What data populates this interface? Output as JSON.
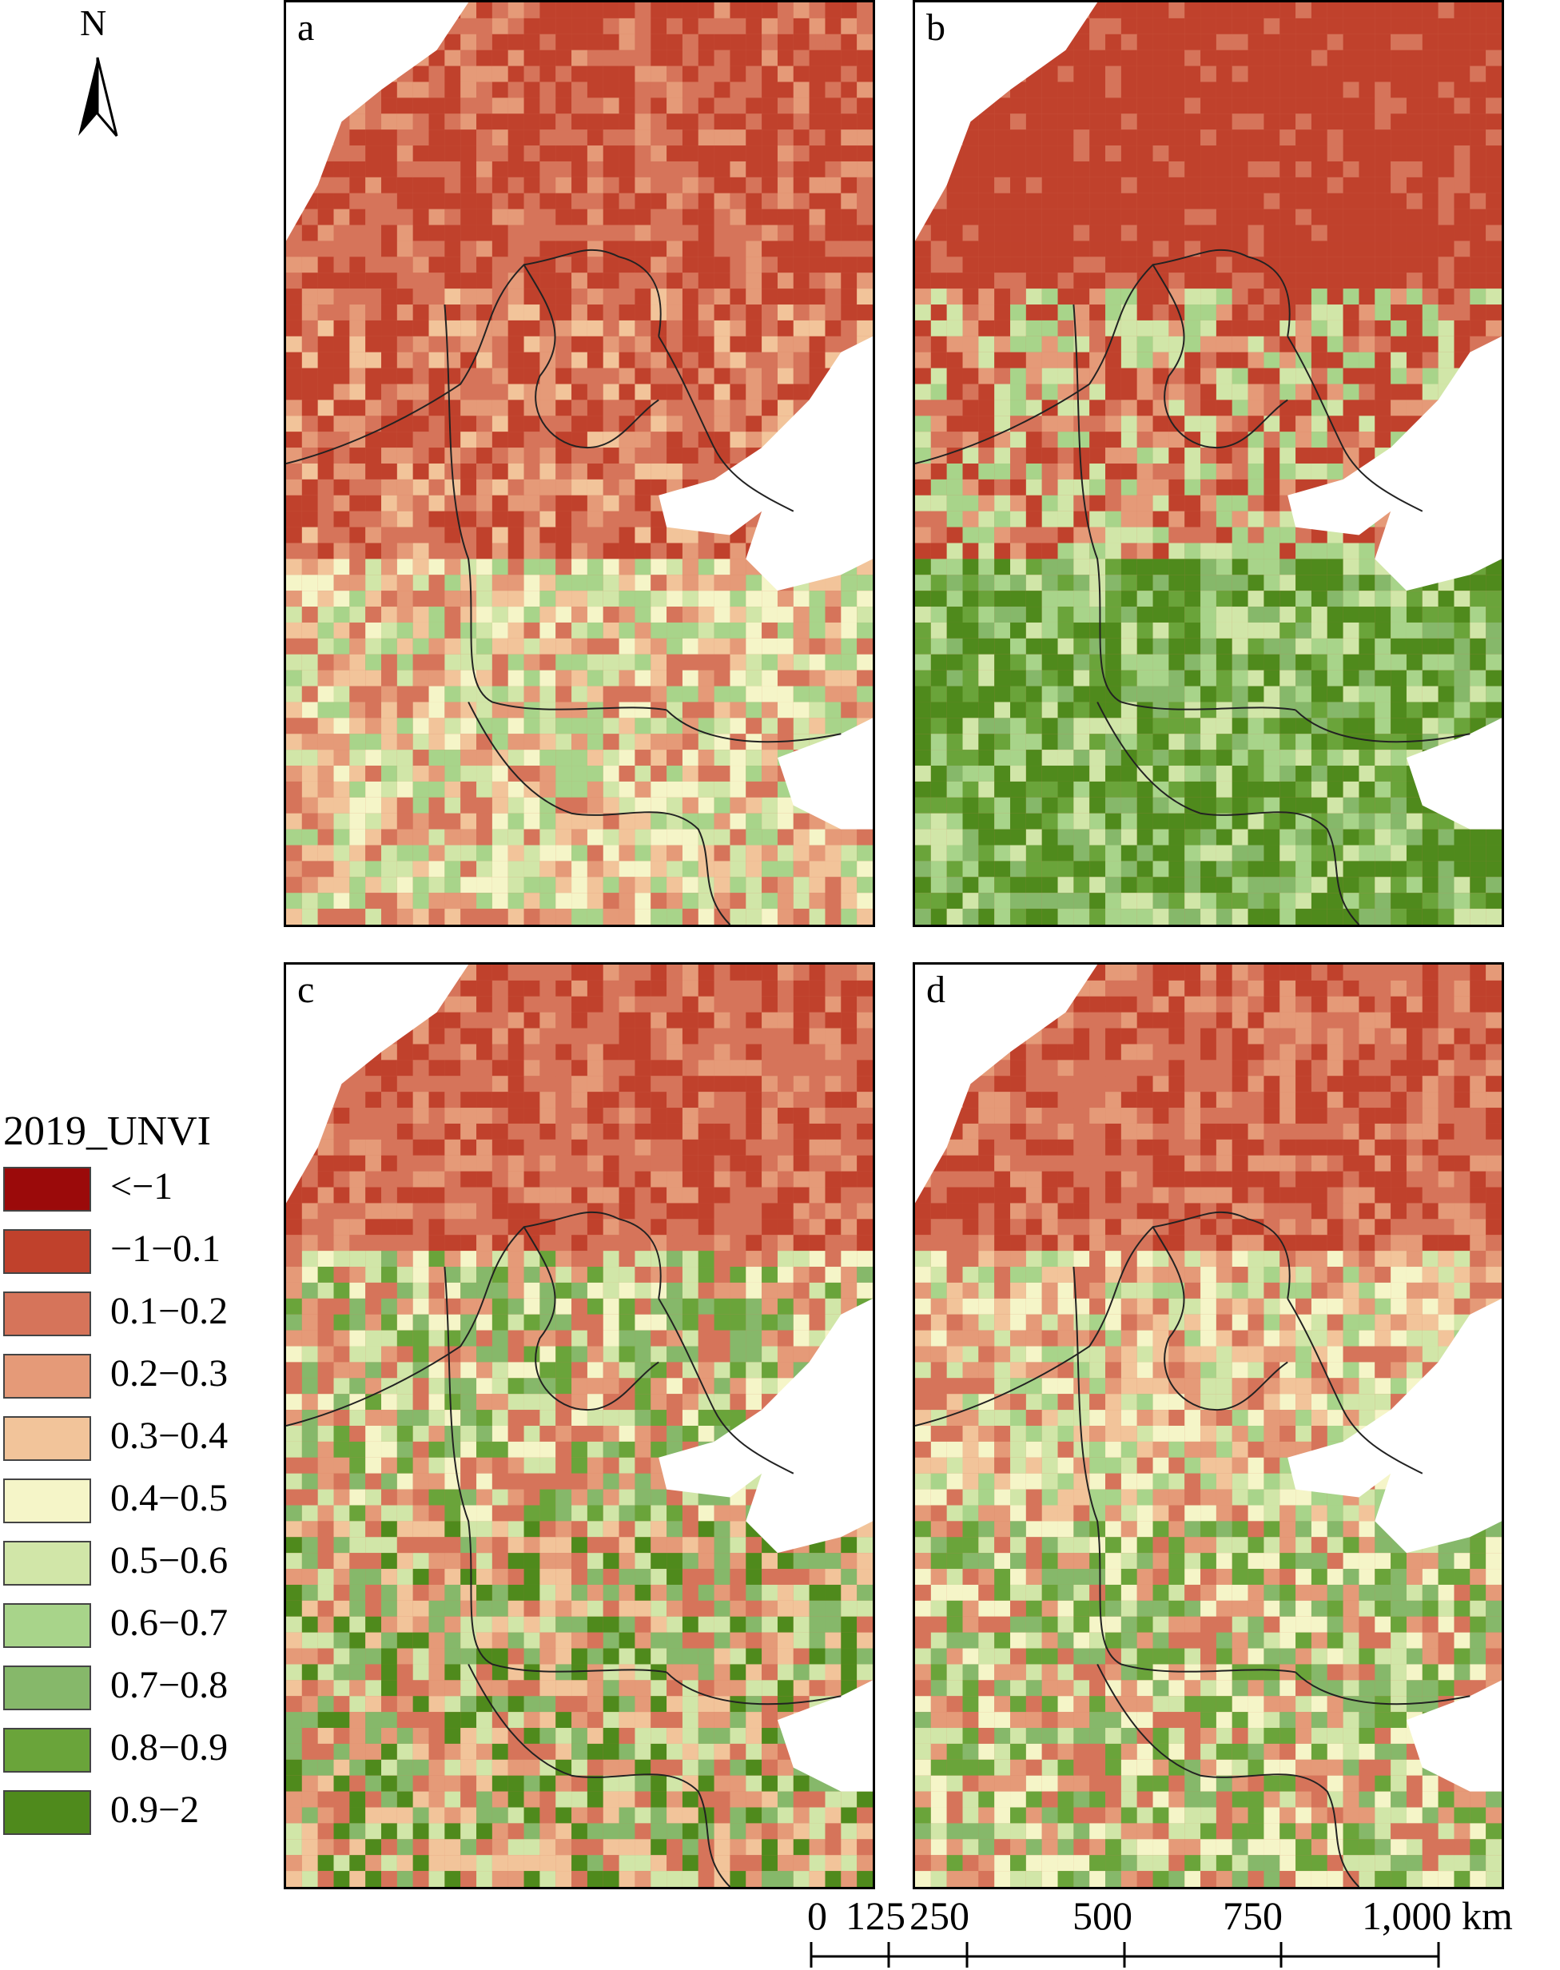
{
  "north_arrow": {
    "letter": "N",
    "icon": "north-arrow-icon"
  },
  "panels": [
    {
      "id": "a",
      "label": "a"
    },
    {
      "id": "b",
      "label": "b"
    },
    {
      "id": "c",
      "label": "c"
    },
    {
      "id": "d",
      "label": "d"
    }
  ],
  "legend": {
    "title": "2019_UNVI",
    "classes": [
      {
        "label": "<−1",
        "color": "#9b0a0a"
      },
      {
        "label": "−1−0.1",
        "color": "#c0412c"
      },
      {
        "label": "0.1−0.2",
        "color": "#d6745a"
      },
      {
        "label": "0.2−0.3",
        "color": "#e59a78"
      },
      {
        "label": "0.3−0.4",
        "color": "#f2c49a"
      },
      {
        "label": "0.4−0.5",
        "color": "#f5f5c8"
      },
      {
        "label": "0.5−0.6",
        "color": "#d1e6a8"
      },
      {
        "label": "0.6−0.7",
        "color": "#a8d48a"
      },
      {
        "label": "0.7−0.8",
        "color": "#86b86a"
      },
      {
        "label": "0.8−0.9",
        "color": "#6aa43a"
      },
      {
        "label": "0.9−2",
        "color": "#4f8a1c"
      }
    ]
  },
  "scale_bar": {
    "labels": [
      "0",
      "125",
      "250",
      "500",
      "750",
      "1,000 km"
    ]
  }
}
